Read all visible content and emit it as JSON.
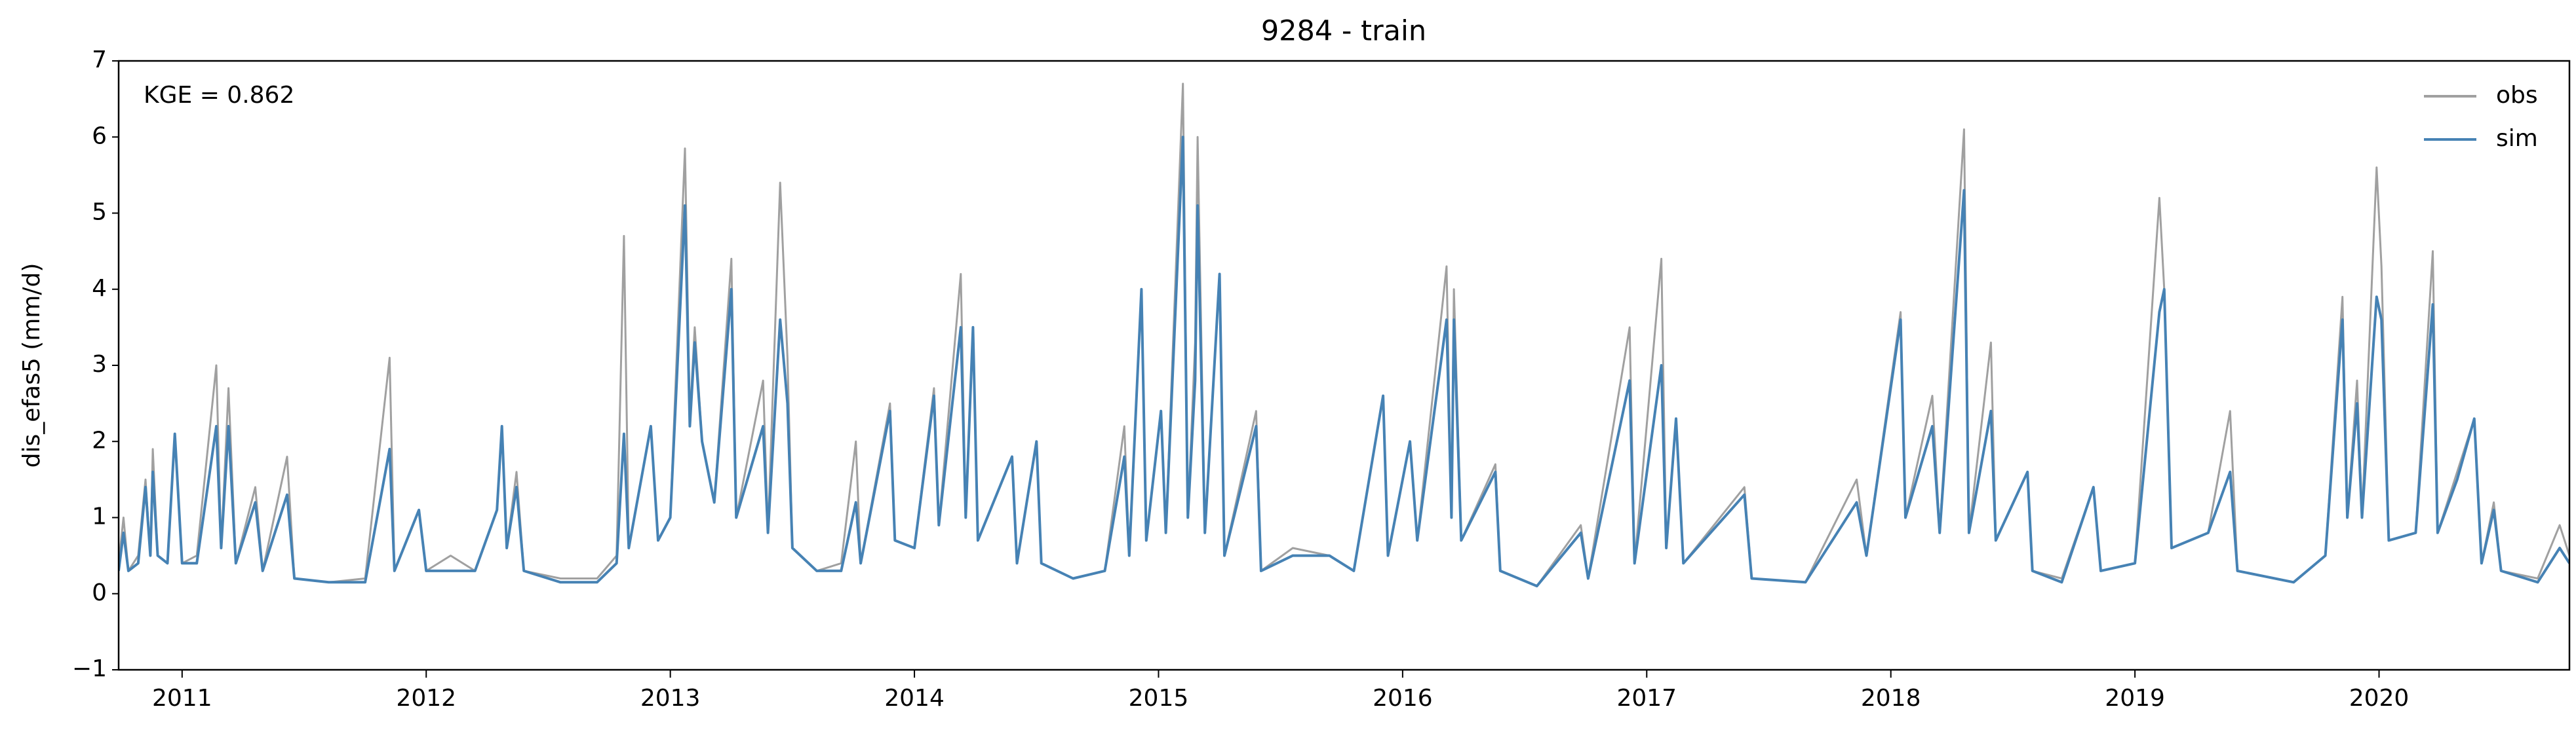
{
  "chart_data": {
    "type": "line",
    "title": "9284 - train",
    "ylabel": "dis_efas5 (mm/d)",
    "annotation": "KGE = 0.862",
    "legend": "upper right",
    "grid": false,
    "xlim": [
      2010.74,
      2020.78
    ],
    "xticks": [
      2011,
      2012,
      2013,
      2014,
      2015,
      2016,
      2017,
      2018,
      2019,
      2020
    ],
    "ylim": [
      -1,
      7
    ],
    "yticks": [
      {
        "value": -1,
        "label": "−1"
      },
      0,
      1,
      2,
      3,
      4,
      5,
      6,
      7
    ],
    "x": [
      2010.74,
      2010.76,
      2010.78,
      2010.82,
      2010.85,
      2010.87,
      2010.88,
      2010.9,
      2010.94,
      2010.97,
      2011.0,
      2011.06,
      2011.14,
      2011.16,
      2011.19,
      2011.22,
      2011.3,
      2011.33,
      2011.43,
      2011.46,
      2011.6,
      2011.75,
      2011.85,
      2011.87,
      2011.97,
      2012.0,
      2012.1,
      2012.2,
      2012.29,
      2012.31,
      2012.33,
      2012.37,
      2012.4,
      2012.55,
      2012.7,
      2012.78,
      2012.81,
      2012.83,
      2012.92,
      2012.95,
      2013.0,
      2013.06,
      2013.08,
      2013.1,
      2013.13,
      2013.18,
      2013.25,
      2013.27,
      2013.38,
      2013.4,
      2013.45,
      2013.48,
      2013.5,
      2013.6,
      2013.7,
      2013.76,
      2013.78,
      2013.9,
      2013.92,
      2014.0,
      2014.08,
      2014.1,
      2014.19,
      2014.21,
      2014.24,
      2014.26,
      2014.4,
      2014.42,
      2014.5,
      2014.52,
      2014.65,
      2014.78,
      2014.86,
      2014.88,
      2014.93,
      2014.95,
      2015.01,
      2015.03,
      2015.1,
      2015.12,
      2015.15,
      2015.16,
      2015.19,
      2015.25,
      2015.27,
      2015.4,
      2015.42,
      2015.55,
      2015.7,
      2015.8,
      2015.92,
      2015.94,
      2016.03,
      2016.06,
      2016.18,
      2016.2,
      2016.21,
      2016.24,
      2016.38,
      2016.4,
      2016.55,
      2016.73,
      2016.76,
      2016.93,
      2016.95,
      2017.06,
      2017.08,
      2017.12,
      2017.15,
      2017.4,
      2017.43,
      2017.65,
      2017.86,
      2017.9,
      2018.04,
      2018.06,
      2018.17,
      2018.2,
      2018.3,
      2018.32,
      2018.41,
      2018.43,
      2018.56,
      2018.58,
      2018.7,
      2018.83,
      2018.86,
      2019.0,
      2019.1,
      2019.12,
      2019.15,
      2019.3,
      2019.39,
      2019.42,
      2019.65,
      2019.78,
      2019.85,
      2019.87,
      2019.91,
      2019.93,
      2019.99,
      2020.01,
      2020.04,
      2020.15,
      2020.22,
      2020.24,
      2020.32,
      2020.39,
      2020.42,
      2020.47,
      2020.5,
      2020.65,
      2020.74,
      2020.78
    ],
    "series": [
      {
        "name": "obs",
        "color": "#a0a0a0",
        "values": [
          0.4,
          1.0,
          0.3,
          0.5,
          1.5,
          0.5,
          1.9,
          0.5,
          0.4,
          2.1,
          0.4,
          0.5,
          3.0,
          0.6,
          2.7,
          0.4,
          1.4,
          0.3,
          1.8,
          0.2,
          0.15,
          0.2,
          3.1,
          0.3,
          1.1,
          0.3,
          0.5,
          0.3,
          1.1,
          2.2,
          0.6,
          1.6,
          0.3,
          0.2,
          0.2,
          0.5,
          4.7,
          0.6,
          2.2,
          0.7,
          1.0,
          5.85,
          2.3,
          3.5,
          2.0,
          1.2,
          4.4,
          1.0,
          2.8,
          0.8,
          5.4,
          3.1,
          0.6,
          0.3,
          0.4,
          2.0,
          0.4,
          2.5,
          0.7,
          0.6,
          2.7,
          0.9,
          4.2,
          1.0,
          3.5,
          0.7,
          1.8,
          0.4,
          2.0,
          0.4,
          0.2,
          0.3,
          2.2,
          0.5,
          4.0,
          0.7,
          2.4,
          0.8,
          6.7,
          1.0,
          3.3,
          6.0,
          0.8,
          4.2,
          0.5,
          2.4,
          0.3,
          0.6,
          0.5,
          0.3,
          2.6,
          0.5,
          2.0,
          0.7,
          4.3,
          1.0,
          4.0,
          0.7,
          1.7,
          0.3,
          0.1,
          0.9,
          0.2,
          3.5,
          0.4,
          4.4,
          0.6,
          2.3,
          0.4,
          1.4,
          0.2,
          0.15,
          1.5,
          0.5,
          3.7,
          1.0,
          2.6,
          0.8,
          6.1,
          0.8,
          3.3,
          0.7,
          1.6,
          0.3,
          0.2,
          1.4,
          0.3,
          0.4,
          5.2,
          4.0,
          0.6,
          0.8,
          2.4,
          0.3,
          0.15,
          0.5,
          3.9,
          1.0,
          2.8,
          1.0,
          5.6,
          4.3,
          0.7,
          0.8,
          4.5,
          0.8,
          1.6,
          2.3,
          0.4,
          1.2,
          0.3,
          0.2,
          0.9,
          0.5
        ]
      },
      {
        "name": "sim",
        "color": "#4682b4",
        "values": [
          0.3,
          0.8,
          0.3,
          0.4,
          1.4,
          0.5,
          1.6,
          0.5,
          0.4,
          2.1,
          0.4,
          0.4,
          2.2,
          0.6,
          2.2,
          0.4,
          1.2,
          0.3,
          1.3,
          0.2,
          0.15,
          0.15,
          1.9,
          0.3,
          1.1,
          0.3,
          0.3,
          0.3,
          1.1,
          2.2,
          0.6,
          1.4,
          0.3,
          0.15,
          0.15,
          0.4,
          2.1,
          0.6,
          2.2,
          0.7,
          1.0,
          5.1,
          2.2,
          3.3,
          2.0,
          1.2,
          4.0,
          1.0,
          2.2,
          0.8,
          3.6,
          2.5,
          0.6,
          0.3,
          0.3,
          1.2,
          0.4,
          2.4,
          0.7,
          0.6,
          2.6,
          0.9,
          3.5,
          1.0,
          3.5,
          0.7,
          1.8,
          0.4,
          2.0,
          0.4,
          0.2,
          0.3,
          1.8,
          0.5,
          4.0,
          0.7,
          2.4,
          0.8,
          6.0,
          1.0,
          2.8,
          5.1,
          0.8,
          4.2,
          0.5,
          2.2,
          0.3,
          0.5,
          0.5,
          0.3,
          2.6,
          0.5,
          2.0,
          0.7,
          3.6,
          1.0,
          3.6,
          0.7,
          1.6,
          0.3,
          0.1,
          0.8,
          0.2,
          2.8,
          0.4,
          3.0,
          0.6,
          2.3,
          0.4,
          1.3,
          0.2,
          0.15,
          1.2,
          0.5,
          3.6,
          1.0,
          2.2,
          0.8,
          5.3,
          0.8,
          2.4,
          0.7,
          1.6,
          0.3,
          0.15,
          1.4,
          0.3,
          0.4,
          3.7,
          4.0,
          0.6,
          0.8,
          1.6,
          0.3,
          0.15,
          0.5,
          3.6,
          1.0,
          2.5,
          1.0,
          3.9,
          3.6,
          0.7,
          0.8,
          3.8,
          0.8,
          1.5,
          2.3,
          0.4,
          1.1,
          0.3,
          0.15,
          0.6,
          0.4
        ]
      }
    ]
  }
}
